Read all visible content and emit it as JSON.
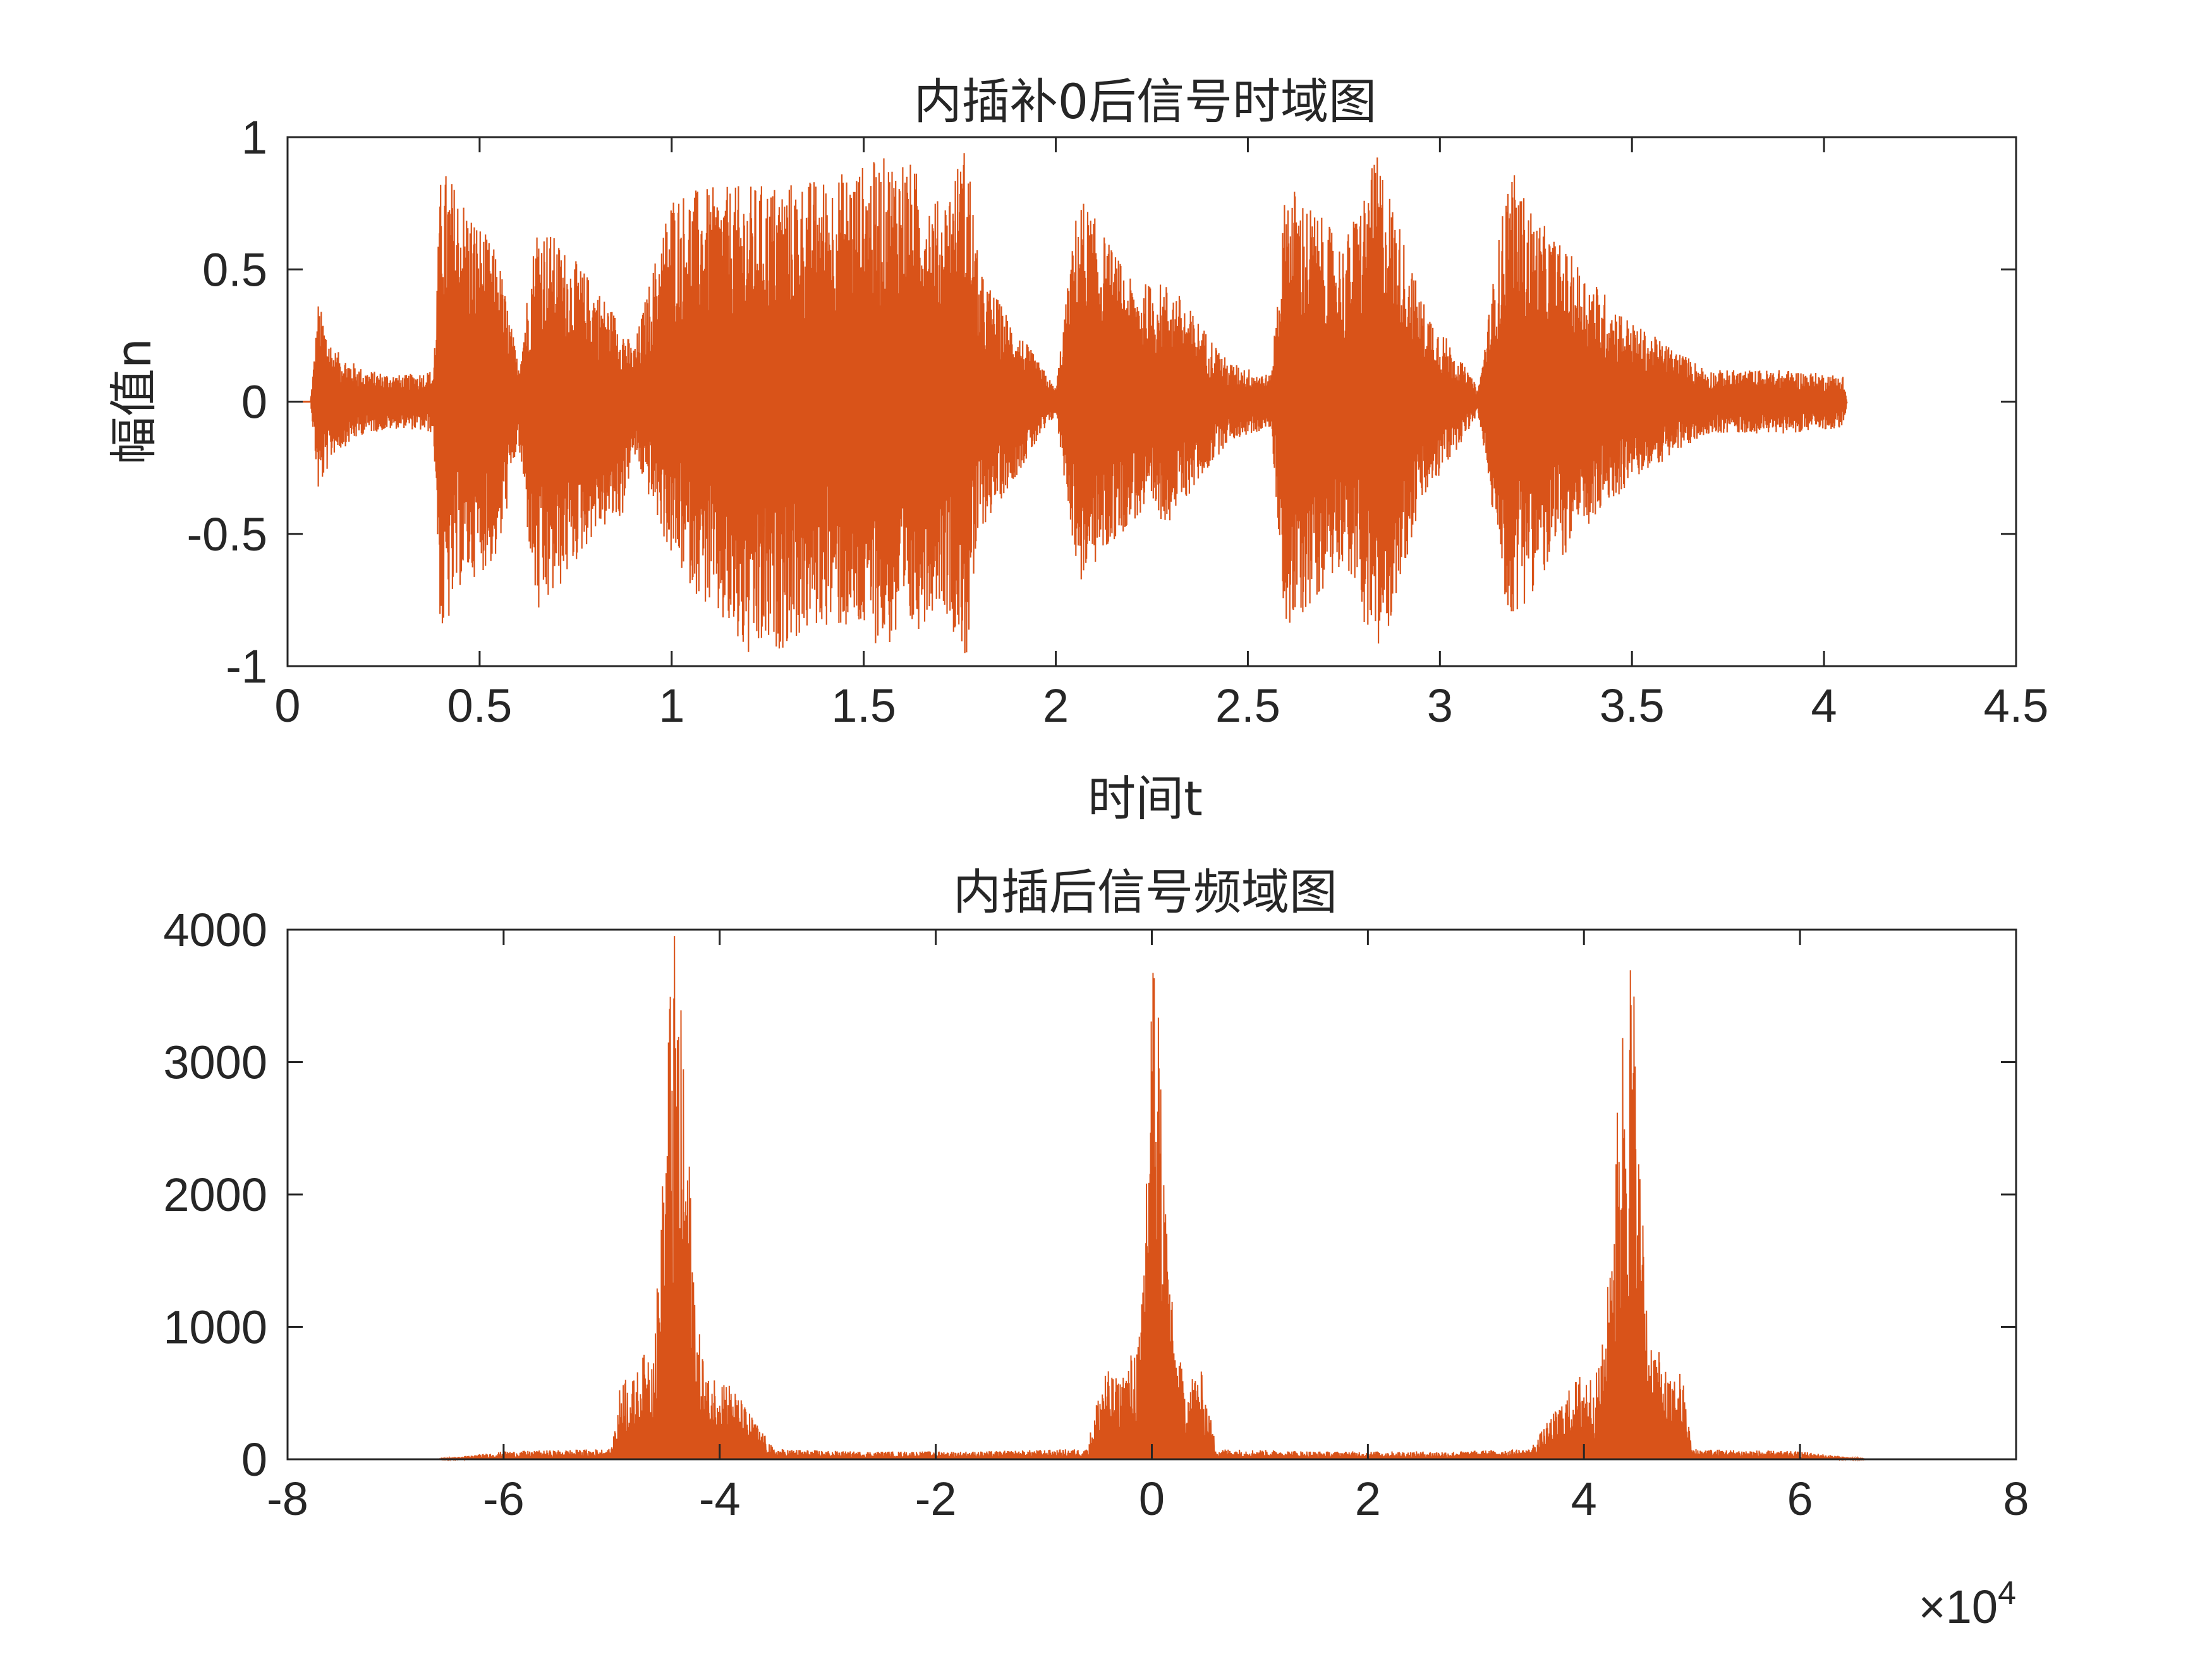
{
  "colors": {
    "series": "#D95319",
    "axis": "#262626",
    "background": "#FFFFFF"
  },
  "chart_data": [
    {
      "type": "line",
      "title": "内插补0后信号时域图",
      "xlabel": "时间t",
      "ylabel": "幅值n",
      "xlim": [
        0,
        4.5
      ],
      "ylim": [
        -1,
        1
      ],
      "xticks": [
        "0",
        "0.5",
        "1",
        "1.5",
        "2",
        "2.5",
        "3",
        "3.5",
        "4",
        "4.5"
      ],
      "yticks": [
        "-1",
        "-0.5",
        "0",
        "0.5",
        "1"
      ],
      "grid": false,
      "series": [
        {
          "x": [
            0.0,
            0.06,
            0.08,
            0.12,
            0.2,
            0.3,
            0.38,
            0.4,
            0.45,
            0.55,
            0.6,
            0.65,
            0.8,
            0.87,
            0.9,
            1.0,
            1.2,
            1.4,
            1.6,
            1.7,
            1.77,
            1.8,
            2.0,
            2.06,
            2.2,
            2.3,
            2.45,
            2.56,
            2.6,
            2.75,
            2.84,
            2.95,
            3.1,
            3.18,
            3.25,
            3.5,
            3.7,
            3.9,
            4.05,
            4.06
          ],
          "upper": [
            0.0,
            0.0,
            0.38,
            0.2,
            0.12,
            0.1,
            0.12,
            0.9,
            0.8,
            0.55,
            0.15,
            0.7,
            0.45,
            0.3,
            0.2,
            0.8,
            0.82,
            0.85,
            0.95,
            0.75,
            1.0,
            0.5,
            0.05,
            0.8,
            0.45,
            0.45,
            0.15,
            0.1,
            0.85,
            0.6,
            0.95,
            0.4,
            0.05,
            0.9,
            0.7,
            0.3,
            0.12,
            0.12,
            0.1,
            0.0
          ],
          "lower": [
            0.0,
            0.0,
            -0.35,
            -0.2,
            -0.12,
            -0.1,
            -0.12,
            -0.95,
            -0.7,
            -0.6,
            -0.15,
            -0.85,
            -0.5,
            -0.45,
            -0.2,
            -0.6,
            -1.0,
            -0.85,
            -0.95,
            -0.75,
            -1.0,
            -0.5,
            -0.05,
            -0.7,
            -0.45,
            -0.45,
            -0.15,
            -0.1,
            -0.9,
            -0.6,
            -1.0,
            -0.4,
            -0.05,
            -0.85,
            -0.7,
            -0.3,
            -0.12,
            -0.12,
            -0.1,
            0.0
          ],
          "note": "envelope of dense waveform; zero line from 0 to 0.06 s"
        }
      ]
    },
    {
      "type": "line",
      "title": "内插后信号频域图",
      "xlabel": "",
      "ylabel": "",
      "xlim": [
        -8,
        8
      ],
      "ylim": [
        0,
        4000
      ],
      "xticks": [
        "-8",
        "-6",
        "-4",
        "-2",
        "0",
        "2",
        "4",
        "6",
        "8"
      ],
      "yticks": [
        "0",
        "1000",
        "2000",
        "3000",
        "4000"
      ],
      "x_exponent": "×10",
      "x_exponent_power": "4",
      "grid": false,
      "series": [
        {
          "x": [
            -6.62,
            -6.0,
            -5.0,
            -4.9,
            -4.8,
            -4.6,
            -4.5,
            -4.45,
            -4.4,
            -4.3,
            -4.2,
            -4.1,
            -4.0,
            -3.5,
            -2.8,
            -1.6,
            -0.6,
            -0.45,
            -0.3,
            -0.1,
            -0.05,
            0.0,
            0.05,
            0.1,
            0.2,
            0.3,
            0.45,
            0.6,
            1.6,
            2.8,
            3.5,
            4.0,
            4.1,
            4.2,
            4.3,
            4.4,
            4.45,
            4.5,
            4.6,
            4.8,
            4.9,
            5.0,
            6.0,
            6.62
          ],
          "y": [
            0,
            60,
            80,
            700,
            600,
            1000,
            2600,
            4000,
            4000,
            2600,
            1000,
            600,
            700,
            80,
            60,
            60,
            80,
            700,
            600,
            1000,
            2600,
            4000,
            4000,
            2600,
            1000,
            600,
            700,
            80,
            60,
            60,
            80,
            700,
            600,
            1000,
            2600,
            4000,
            4000,
            2600,
            1000,
            600,
            700,
            80,
            60,
            0
          ],
          "note": "magnitude spectrum, peaks near -4.4e4, 0, 4.4e4"
        }
      ]
    }
  ]
}
